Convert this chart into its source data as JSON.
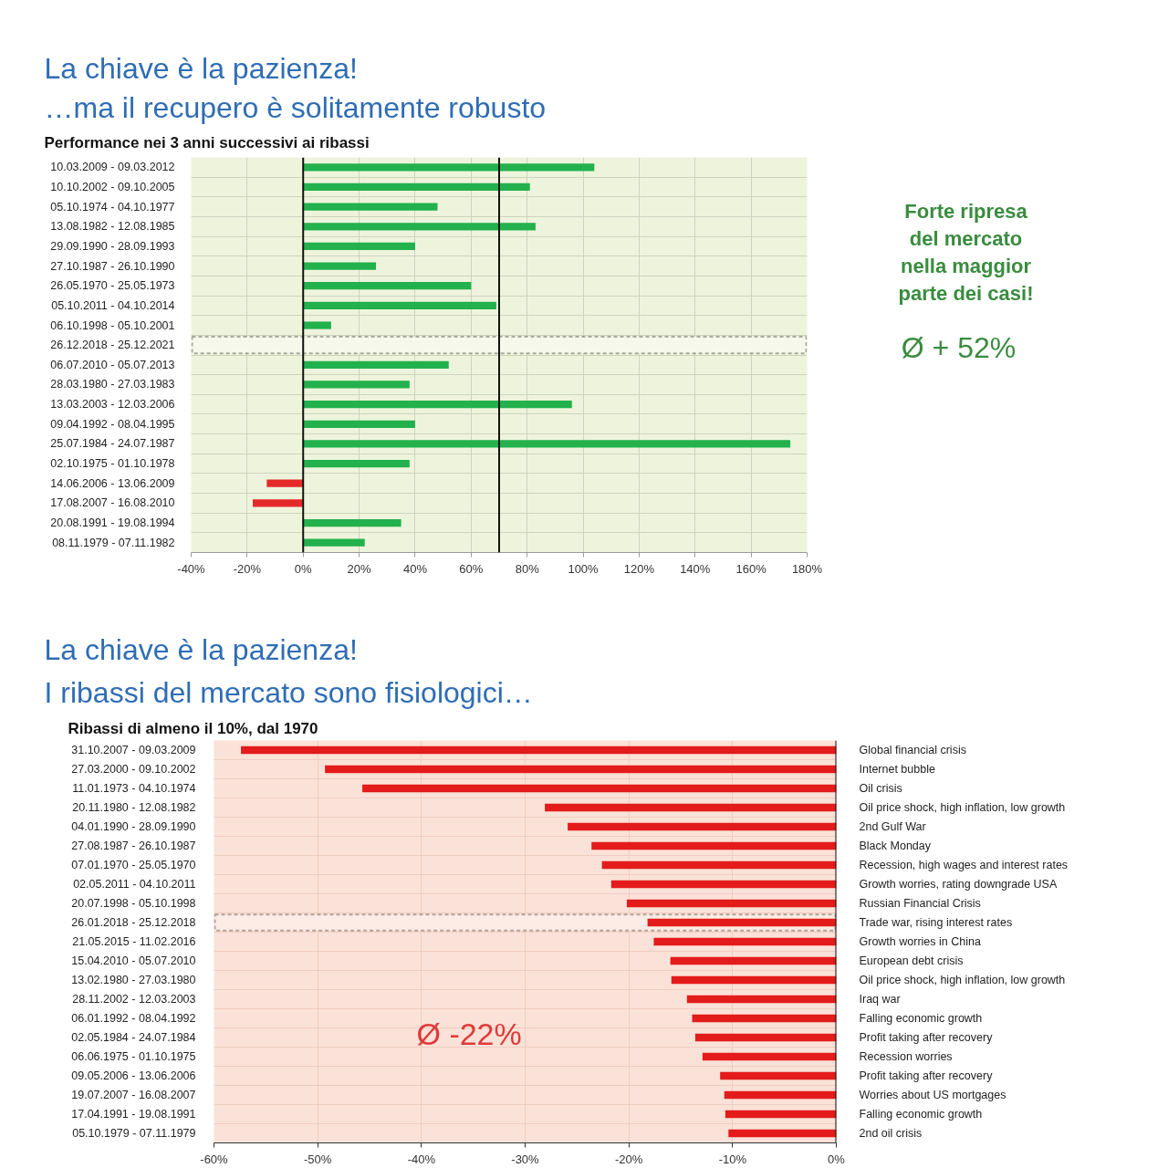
{
  "chart_data": [
    {
      "type": "bar",
      "orientation": "horizontal",
      "title": "La chiave è la pazienza!",
      "subtitle": "…ma il recupero è solitamente robusto",
      "annotations": [
        "Performance nei 3 anni successivi ai ribassi"
      ],
      "categories": [
        "10.03.2009 - 09.03.2012",
        "10.10.2002 - 09.10.2005",
        "05.10.1974 - 04.10.1977",
        "13.08.1982 - 12.08.1985",
        "29.09.1990 - 28.09.1993",
        "27.10.1987 - 26.10.1990",
        "26.05.1970 - 25.05.1973",
        "05.10.2011 - 04.10.2014",
        "06.10.1998 - 05.10.2001",
        "26.12.2018 - 25.12.2021",
        "06.07.2010 - 05.07.2013",
        "28.03.1980 - 27.03.1983",
        "13.03.2003 - 12.03.2006",
        "09.04.1992 - 08.04.1995",
        "25.07.1984 - 24.07.1987",
        "02.10.1975 - 01.10.1978",
        "14.06.2006 - 13.06.2009",
        "17.08.2007 - 16.08.2010",
        "20.08.1991 - 19.08.1994",
        "08.11.1979 - 07.11.1982"
      ],
      "values": [
        104,
        81,
        48,
        83,
        40,
        26,
        60,
        69,
        10,
        null,
        52,
        38,
        96,
        40,
        174,
        38,
        -13,
        -18,
        35,
        22
      ],
      "colors": [
        "#22b14c",
        "#22b14c",
        "#22b14c",
        "#22b14c",
        "#22b14c",
        "#22b14c",
        "#22b14c",
        "#22b14c",
        "#22b14c",
        null,
        "#22b14c",
        "#22b14c",
        "#22b14c",
        "#22b14c",
        "#22b14c",
        "#22b14c",
        "#e52a2a",
        "#e52a2a",
        "#22b14c",
        "#22b14c"
      ],
      "xlim": [
        -40,
        180
      ],
      "xticks": [
        {
          "value": -40,
          "label": "-40%"
        },
        {
          "value": -20,
          "label": "-20%"
        },
        {
          "value": 0,
          "label": "0%"
        },
        {
          "value": 20,
          "label": "20%"
        },
        {
          "value": 40,
          "label": "40%"
        },
        {
          "value": 60,
          "label": "60%"
        },
        {
          "value": 80,
          "label": "80%"
        },
        {
          "value": 100,
          "label": "100%"
        },
        {
          "value": 120,
          "label": "120%"
        },
        {
          "value": 140,
          "label": "140%"
        },
        {
          "value": 160,
          "label": "160%"
        },
        {
          "value": 180,
          "label": "180%"
        }
      ],
      "ref_lines": [
        {
          "axis": "x",
          "value": 0
        },
        {
          "axis": "x",
          "value": 70
        }
      ],
      "bands": [
        {
          "axis": "y",
          "from": "26.12.2018 - 25.12.2021",
          "to": "26.12.2018 - 25.12.2021",
          "color": "#f5f8ea"
        }
      ],
      "grid": true
    },
    {
      "type": "other",
      "annotations": [
        "Forte ripresa del mercato nella maggior parte dei casi!",
        "Ø + 52%"
      ]
    },
    {
      "type": "bar",
      "orientation": "horizontal",
      "title": "La chiave è la pazienza!",
      "subtitle": "I ribassi del mercato sono fisiologici…",
      "annotations": [
        "Ribassi di almeno il 10%, dal 1970",
        "Ø -22%"
      ],
      "categories": [
        "31.10.2007 - 09.03.2009",
        "27.03.2000 - 09.10.2002",
        "11.01.1973 - 04.10.1974",
        "20.11.1980 - 12.08.1982",
        "04.01.1990 - 28.09.1990",
        "27.08.1987 - 26.10.1987",
        "07.01.1970 - 25.05.1970",
        "02.05.2011 - 04.10.2011",
        "20.07.1998 - 05.10.1998",
        "26.01.2018 - 25.12.2018",
        "21.05.2015 - 11.02.2016",
        "15.04.2010 - 05.07.2010",
        "13.02.1980 - 27.03.1980",
        "28.11.2002 - 12.03.2003",
        "06.01.1992 - 08.04.1992",
        "02.05.1984 - 24.07.1984",
        "06.06.1975 - 01.10.1975",
        "09.05.2006 - 13.06.2006",
        "19.07.2007 - 16.08.2007",
        "17.04.1991 - 19.08.1991",
        "05.10.1979 - 07.11.1979"
      ],
      "y2_categories": [
        "Global financial crisis",
        "Internet bubble",
        "Oil crisis",
        "Oil price shock, high inflation, low growth",
        "2nd Gulf War",
        "Black Monday",
        "Recession, high wages and  interest rates",
        "Growth worries, rating downgrade USA",
        "Russian Financial Crisis",
        "Trade war, rising interest rates",
        "Growth worries in China",
        "European debt crisis",
        "Oil price shock, high inflation, low growth",
        "Iraq war",
        "Falling economic growth",
        "Profit taking after recovery",
        "Recession worries",
        "Profit taking after recovery",
        "Worries about US mortgages",
        "Falling economic growth",
        "2nd oil crisis"
      ],
      "values": [
        -57.4,
        -49.3,
        -45.7,
        -28.1,
        -25.9,
        -23.6,
        -22.6,
        -21.7,
        -20.2,
        -18.2,
        -17.6,
        -16.0,
        -15.9,
        -14.4,
        -13.9,
        -13.6,
        -12.9,
        -11.2,
        -10.8,
        -10.7,
        -10.4
      ],
      "color": "#e41b1b",
      "xlim": [
        -60,
        0
      ],
      "xticks": [
        {
          "value": -60,
          "label": "-60%"
        },
        {
          "value": -50,
          "label": "-50%"
        },
        {
          "value": -40,
          "label": "-40%"
        },
        {
          "value": -30,
          "label": "-30%"
        },
        {
          "value": -20,
          "label": "-20%"
        },
        {
          "value": -10,
          "label": "-10%"
        },
        {
          "value": 0,
          "label": "0%"
        }
      ],
      "ref_lines": [
        {
          "axis": "x",
          "value": 0
        }
      ],
      "bands": [
        {
          "axis": "y",
          "from": "26.01.2018 - 25.12.2018",
          "to": "26.01.2018 - 25.12.2018",
          "color": "#fdece5"
        }
      ],
      "grid": true
    }
  ]
}
